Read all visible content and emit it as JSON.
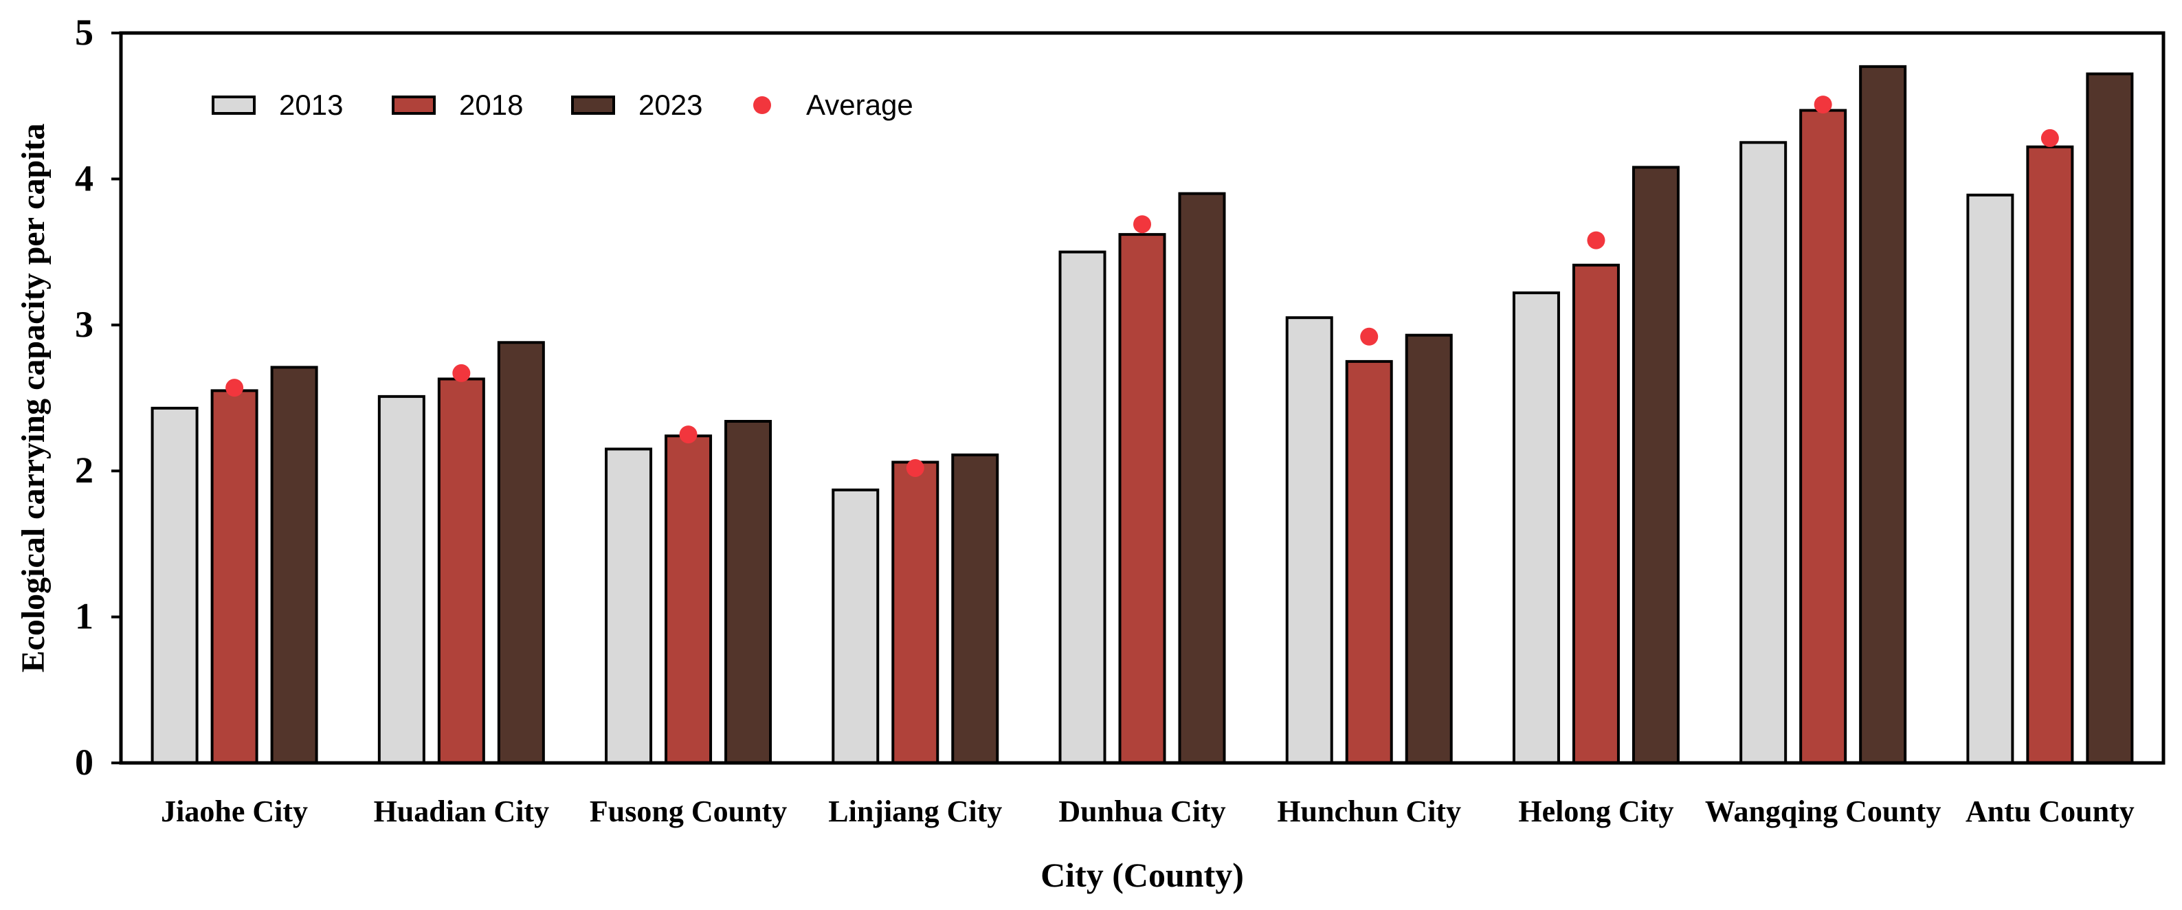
{
  "chart_data": {
    "type": "bar",
    "title": "",
    "xlabel": "City (County)",
    "ylabel": "Ecological carrying capacity per capita",
    "ylim": [
      0,
      5
    ],
    "yticks": [
      "0",
      "1",
      "2",
      "3",
      "4",
      "5"
    ],
    "grid": false,
    "legend_position": "top-left",
    "categories": [
      "Jiaohe City",
      "Huadian City",
      "Fusong County",
      "Linjiang City",
      "Dunhua City",
      "Hunchun City",
      "Helong City",
      "Wangqing County",
      "Antu County"
    ],
    "series": [
      {
        "name": "2013",
        "kind": "bar",
        "color": "#d9d9d9",
        "values": [
          2.43,
          2.51,
          2.15,
          1.87,
          3.5,
          3.05,
          3.22,
          4.25,
          3.89
        ]
      },
      {
        "name": "2018",
        "kind": "bar",
        "color": "#b0423a",
        "values": [
          2.55,
          2.63,
          2.24,
          2.06,
          3.62,
          2.75,
          3.41,
          4.47,
          4.22
        ]
      },
      {
        "name": "2023",
        "kind": "bar",
        "color": "#53352b",
        "values": [
          2.71,
          2.88,
          2.34,
          2.11,
          3.9,
          2.93,
          4.08,
          4.77,
          4.72
        ]
      },
      {
        "name": "Average",
        "kind": "point",
        "color": "#f2363d",
        "values": [
          2.57,
          2.67,
          2.25,
          2.02,
          3.69,
          2.92,
          3.58,
          4.51,
          4.28
        ]
      }
    ]
  }
}
